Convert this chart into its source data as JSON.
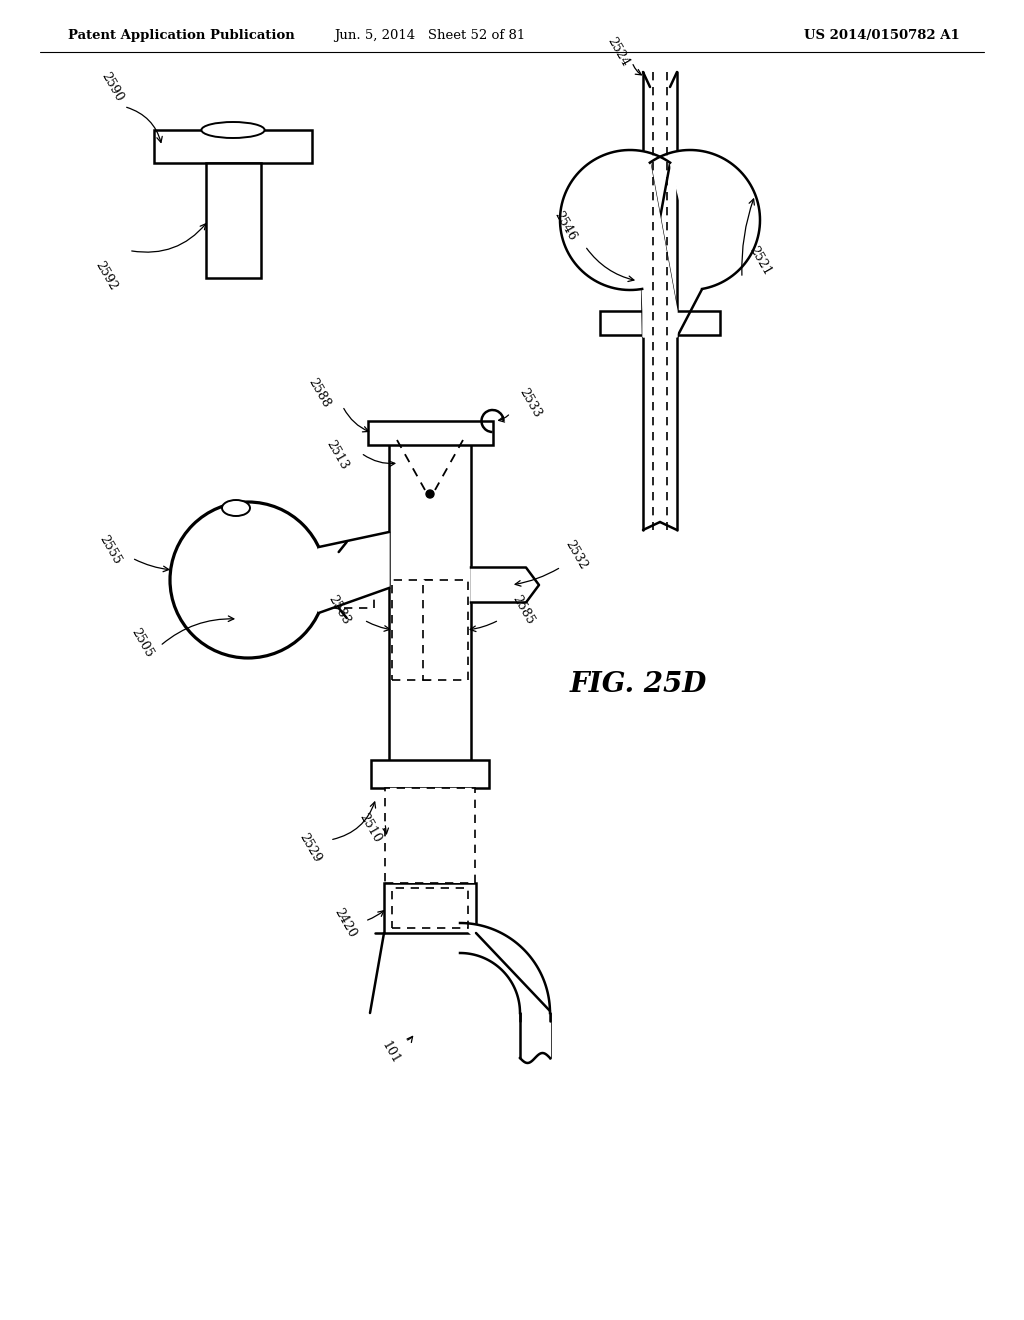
{
  "bg_color": "#ffffff",
  "header_left": "Patent Application Publication",
  "header_mid": "Jun. 5, 2014   Sheet 52 of 81",
  "header_right": "US 2014/0150782 A1",
  "fig_label": "FIG. 25D"
}
